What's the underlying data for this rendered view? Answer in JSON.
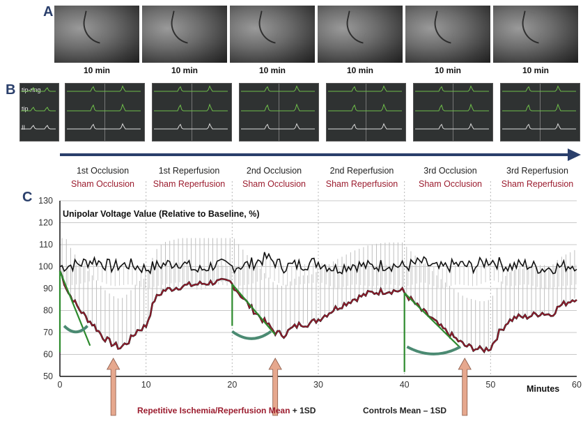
{
  "panels": {
    "a": "A",
    "b": "B",
    "c": "C"
  },
  "angiograms": [
    {
      "label": "10 min"
    },
    {
      "label": "10 min"
    },
    {
      "label": "10 min"
    },
    {
      "label": "10 min"
    },
    {
      "label": "10 min"
    },
    {
      "label": "10 min"
    }
  ],
  "ecg_leads": [
    "tip-ring",
    "tip",
    "II"
  ],
  "phases": [
    {
      "name": "1st Occlusion",
      "sham": "Sham Occlusion"
    },
    {
      "name": "1st Reperfusion",
      "sham": "Sham Reperfusion"
    },
    {
      "name": "2nd Occlusion",
      "sham": "Sham Occlusion"
    },
    {
      "name": "2nd Reperfusion",
      "sham": "Sham Reperfusion"
    },
    {
      "name": "3rd Occlusion",
      "sham": "Sham Occlusion"
    },
    {
      "name": "3rd Reperfusion",
      "sham": "Sham Reperfusion"
    }
  ],
  "colors": {
    "ischemia": "#9b1c2e",
    "controls": "#111111",
    "fit": "#2d8a2d",
    "arrow": "#e6a88e",
    "timeline": "#2a3f6b"
  },
  "chart_data": {
    "type": "line",
    "title": "Unipolar Voltage Value (Relative to Baseline, %)",
    "xlabel": "Minutes",
    "xlim": [
      0,
      60
    ],
    "ylim": [
      50,
      130
    ],
    "xticks": [
      0,
      10,
      20,
      30,
      40,
      50,
      60
    ],
    "yticks": [
      50,
      60,
      70,
      80,
      90,
      100,
      110,
      120,
      130
    ],
    "grid": "horizontal",
    "series": [
      {
        "name": "Repetitive Ischemia/Reperfusion Mean",
        "error": "+ 1SD",
        "color": "#9b1c2e",
        "x": [
          0,
          1,
          2,
          3,
          4,
          5,
          6,
          7,
          8,
          9,
          10,
          11,
          12,
          14,
          16,
          18,
          19.9,
          20,
          21,
          22,
          23,
          24,
          25,
          26,
          27,
          28,
          29,
          30,
          32,
          34,
          36,
          38,
          39.9,
          40,
          41,
          42,
          43,
          44,
          45,
          46,
          47,
          48,
          49,
          50,
          51,
          52,
          53,
          54,
          55,
          56,
          57,
          58,
          59,
          60
        ],
        "y": [
          98,
          88,
          82,
          77,
          73,
          68,
          65,
          63,
          66,
          71,
          73,
          85,
          89,
          91,
          92,
          93,
          93,
          92,
          87,
          82,
          78,
          74,
          70,
          69,
          72,
          74,
          74,
          76,
          81,
          85,
          88,
          89,
          89,
          88,
          84,
          80,
          77,
          73,
          70,
          67,
          64,
          63,
          62,
          63,
          70,
          75,
          77,
          77,
          78,
          79,
          78,
          82,
          84,
          86
        ]
      },
      {
        "name": "Controls Mean",
        "error": "– 1SD",
        "color": "#111111",
        "x": [
          0,
          2,
          4,
          6,
          8,
          10,
          12,
          14,
          16,
          18,
          20,
          22,
          24,
          26,
          28,
          30,
          32,
          34,
          36,
          38,
          40,
          42,
          44,
          46,
          48,
          50,
          52,
          54,
          56,
          58,
          60
        ],
        "y": [
          100,
          101,
          103,
          100,
          101,
          99,
          101,
          102,
          98,
          101,
          100,
          101,
          104,
          100,
          101,
          102,
          99,
          101,
          100,
          101,
          100,
          102,
          99,
          101,
          100,
          103,
          100,
          101,
          99,
          100,
          101
        ]
      }
    ],
    "annotations": [
      {
        "type": "arrow",
        "x": 6.2
      },
      {
        "type": "arrow",
        "x": 25.0
      },
      {
        "type": "arrow",
        "x": 47.0
      }
    ]
  },
  "legend": {
    "ischemia": "Repetitive Ischemia/Reperfusion Mean",
    "ischemia_sd": " + 1SD",
    "controls": "Controls Mean – 1SD"
  }
}
